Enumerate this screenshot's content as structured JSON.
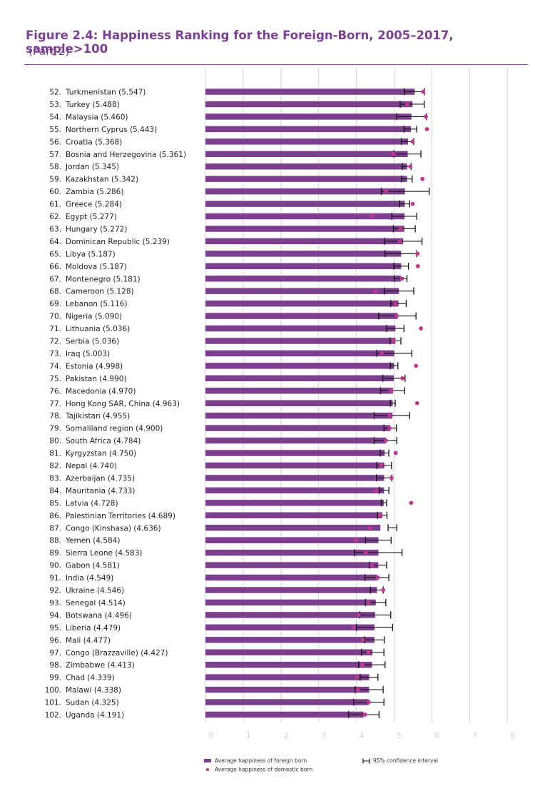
{
  "figure": {
    "title": "Figure 2.4: Happiness Ranking for the Foreign-Born, 2005–2017, sample>100",
    "subtitle": "(Part 2)"
  },
  "colors": {
    "bar": "#7b3f8e",
    "domestic": "#c4378e",
    "title": "#7b3f94",
    "ci": "#111111",
    "grid": "#d6d6d6",
    "tick": "#cfcfcf"
  },
  "chart_data": {
    "type": "bar",
    "orientation": "horizontal",
    "xlim": [
      0,
      8
    ],
    "xticks": [
      "0",
      "1",
      "2",
      "3",
      "4",
      "5",
      "6",
      "7",
      "8"
    ],
    "grid": true,
    "legend_position": "bottom-center",
    "legend": {
      "foreign": "Average happiness of foreign born",
      "ci": "95% confidence interval",
      "domestic": "Average happiness of domestic born"
    },
    "rows": [
      {
        "label": "52. Turkmenistan (5.547)",
        "value": 5.547,
        "ci": [
          5.27,
          5.8
        ],
        "domestic": 5.77
      },
      {
        "label": "53. Turkey (5.488)",
        "value": 5.488,
        "ci": [
          5.16,
          5.8
        ],
        "domestic": 5.34
      },
      {
        "label": "54. Malaysia (5.460)",
        "value": 5.46,
        "ci": [
          5.07,
          5.86
        ],
        "domestic": 5.84
      },
      {
        "label": "55. Northern Cyprus (5.443)",
        "value": 5.443,
        "ci": [
          5.26,
          5.6
        ],
        "domestic": 5.87
      },
      {
        "label": "56. Croatia (5.368)",
        "value": 5.368,
        "ci": [
          5.19,
          5.52
        ],
        "domestic": 5.49
      },
      {
        "label": "57. Bosnia and Herzegovina (5.361)",
        "value": 5.361,
        "ci": [
          4.99,
          5.71
        ],
        "domestic": 4.98
      },
      {
        "label": "58. Jordan (5.345)",
        "value": 5.345,
        "ci": [
          5.22,
          5.45
        ],
        "domestic": 5.43
      },
      {
        "label": "59. Kazakhstan (5.342)",
        "value": 5.342,
        "ci": [
          5.19,
          5.48
        ],
        "domestic": 5.75
      },
      {
        "label": "60. Zambia (5.286)",
        "value": 5.286,
        "ci": [
          4.66,
          5.93
        ],
        "domestic": 4.79
      },
      {
        "label": "61. Greece (5.284)",
        "value": 5.284,
        "ci": [
          5.14,
          5.41
        ],
        "domestic": 5.49
      },
      {
        "label": "62. Egypt (5.277)",
        "value": 5.277,
        "ci": [
          4.94,
          5.6
        ],
        "domestic": 4.42
      },
      {
        "label": "63. Hungary (5.272)",
        "value": 5.272,
        "ci": [
          4.98,
          5.56
        ],
        "domestic": 5.17
      },
      {
        "label": "64. Dominican Republic (5.239)",
        "value": 5.239,
        "ci": [
          4.75,
          5.74
        ],
        "domestic": 5.15
      },
      {
        "label": "65. Libya (5.187)",
        "value": 5.187,
        "ci": [
          4.76,
          5.6
        ],
        "domestic": 5.62
      },
      {
        "label": "66. Moldova (5.187)",
        "value": 5.187,
        "ci": [
          4.99,
          5.38
        ],
        "domestic": 5.63
      },
      {
        "label": "67. Montenegro (5.181)",
        "value": 5.181,
        "ci": [
          5.0,
          5.34
        ],
        "domestic": 5.21
      },
      {
        "label": "68. Cameroon (5.128)",
        "value": 5.128,
        "ci": [
          4.74,
          5.52
        ],
        "domestic": 4.51
      },
      {
        "label": "69. Lebanon (5.116)",
        "value": 5.116,
        "ci": [
          4.91,
          5.32
        ],
        "domestic": 5.03
      },
      {
        "label": "70. Nigeria (5.090)",
        "value": 5.09,
        "ci": [
          4.59,
          5.58
        ],
        "domestic": 5.07
      },
      {
        "label": "71. Lithuania (5.036)",
        "value": 5.036,
        "ci": [
          4.8,
          5.26
        ],
        "domestic": 5.71
      },
      {
        "label": "72. Serbia (5.036)",
        "value": 5.036,
        "ci": [
          4.89,
          5.18
        ],
        "domestic": 4.98
      },
      {
        "label": "73. Iraq (5.003)",
        "value": 5.003,
        "ci": [
          4.54,
          5.47
        ],
        "domestic": 4.67
      },
      {
        "label": "74. Estonia (4.998)",
        "value": 4.998,
        "ci": [
          4.9,
          5.1
        ],
        "domestic": 5.58
      },
      {
        "label": "75. Pakistan (4.990)",
        "value": 4.99,
        "ci": [
          4.7,
          5.29
        ],
        "domestic": 5.22
      },
      {
        "label": "76. Macedonia (4.970)",
        "value": 4.97,
        "ci": [
          4.64,
          5.28
        ],
        "domestic": 4.92
      },
      {
        "label": "77. Hong Kong SAR, China (4.963)",
        "value": 4.963,
        "ci": [
          4.9,
          5.03
        ],
        "domestic": 5.61
      },
      {
        "label": "78. Tajikistan (4.955)",
        "value": 4.955,
        "ci": [
          4.47,
          5.41
        ],
        "domestic": 4.88
      },
      {
        "label": "79. Somaliland region (4.900)",
        "value": 4.9,
        "ci": [
          4.73,
          5.06
        ],
        "domestic": 4.88
      },
      {
        "label": "80. South Africa (4.784)",
        "value": 4.784,
        "ci": [
          4.47,
          5.07
        ],
        "domestic": 4.78
      },
      {
        "label": "81. Kyrgyzstan (4.750)",
        "value": 4.75,
        "ci": [
          4.63,
          4.86
        ],
        "domestic": 5.04
      },
      {
        "label": "82. Nepal (4.740)",
        "value": 4.74,
        "ci": [
          4.54,
          4.93
        ],
        "domestic": 4.65
      },
      {
        "label": "83. Azerbaijan (4.735)",
        "value": 4.735,
        "ci": [
          4.53,
          4.94
        ],
        "domestic": 4.93
      },
      {
        "label": "84. Mauritania (4.733)",
        "value": 4.733,
        "ci": [
          4.61,
          4.86
        ],
        "domestic": 4.52
      },
      {
        "label": "85. Latvia (4.728)",
        "value": 4.728,
        "ci": [
          4.66,
          4.8
        ],
        "domestic": 5.45
      },
      {
        "label": "86. Palestinian Territories (4.689)",
        "value": 4.689,
        "ci": [
          4.56,
          4.81
        ],
        "domestic": 4.63
      },
      {
        "label": "87. Congo (Kinshasa) (4.636)",
        "value": 4.636,
        "ci": [
          4.84,
          5.07
        ],
        "domestic": 4.36
      },
      {
        "label": "88. Yemen (4.584)",
        "value": 4.584,
        "ci": [
          4.24,
          4.92
        ],
        "domestic": 3.99
      },
      {
        "label": "89. Sierra Leone (4.583)",
        "value": 4.583,
        "ci": [
          3.95,
          5.21
        ],
        "domestic": 4.25
      },
      {
        "label": "90. Gabon (4.581)",
        "value": 4.581,
        "ci": [
          4.35,
          4.8
        ],
        "domestic": 4.41
      },
      {
        "label": "91. India (4.549)",
        "value": 4.549,
        "ci": [
          4.23,
          4.86
        ],
        "domestic": 4.57
      },
      {
        "label": "92. Ukraine (4.546)",
        "value": 4.546,
        "ci": [
          4.37,
          4.71
        ],
        "domestic": 4.71
      },
      {
        "label": "93. Senegal (4.514)",
        "value": 4.514,
        "ci": [
          4.24,
          4.78
        ],
        "domestic": 4.32
      },
      {
        "label": "94. Botswana (4.496)",
        "value": 4.496,
        "ci": [
          4.09,
          4.91
        ],
        "domestic": 4.06
      },
      {
        "label": "95. Liberia (4.479)",
        "value": 4.479,
        "ci": [
          4.0,
          4.96
        ],
        "domestic": 3.92
      },
      {
        "label": "96. Mali (4.477)",
        "value": 4.477,
        "ci": [
          4.22,
          4.74
        ],
        "domestic": 4.17
      },
      {
        "label": "97. Congo (Brazzaville) (4.427)",
        "value": 4.427,
        "ci": [
          4.14,
          4.73
        ],
        "domestic": 4.32
      },
      {
        "label": "98. Zimbabwe (4.413)",
        "value": 4.413,
        "ci": [
          4.06,
          4.76
        ],
        "domestic": 4.16
      },
      {
        "label": "99. Chad (4.339)",
        "value": 4.339,
        "ci": [
          4.1,
          4.57
        ],
        "domestic": 4.02
      },
      {
        "label": "100. Malawi (4.338)",
        "value": 4.338,
        "ci": [
          3.97,
          4.71
        ],
        "domestic": 4.04
      },
      {
        "label": "101. Sudan (4.325)",
        "value": 4.325,
        "ci": [
          3.93,
          4.73
        ],
        "domestic": 4.33
      },
      {
        "label": "102. Uganda (4.191)",
        "value": 4.191,
        "ci": [
          3.79,
          4.6
        ],
        "domestic": 4.23
      }
    ]
  }
}
